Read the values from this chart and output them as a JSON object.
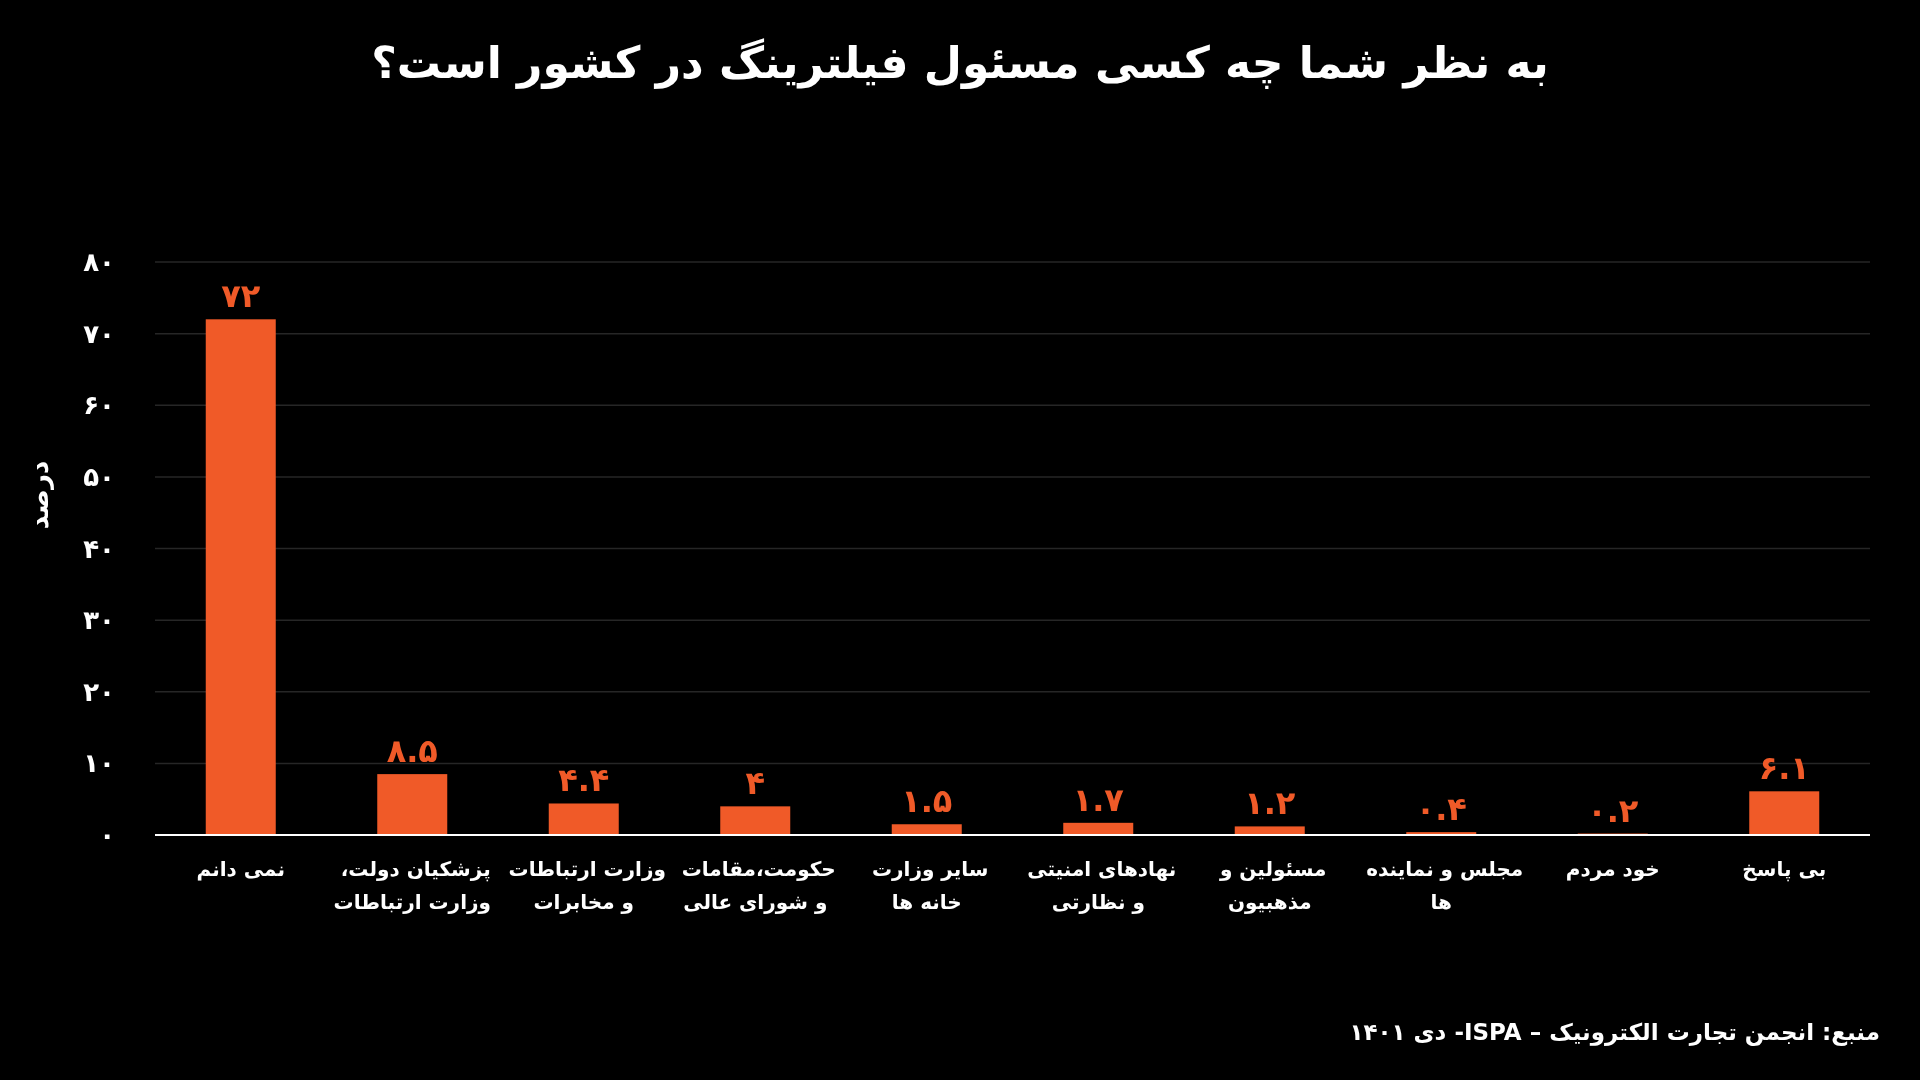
{
  "chart_data": {
    "type": "bar",
    "title": "به نظر شما چه کسی مسئول فیلترینگ در کشور است؟",
    "ylabel": "درصد",
    "categories": [
      "نمی دانم",
      "پزشکیان دولت، وزارت ارتباطات",
      "وزارت ارتباطات و مخابرات",
      "حکومت،مقامات و شورای عالی",
      "سایر وزارت خانه ها",
      "نهادهای امنیتی و نظارتی",
      "مسئولین و مذهبیون",
      "مجلس و نماینده ها",
      "خود مردم",
      "بی پاسخ"
    ],
    "values": [
      72,
      8.5,
      4.4,
      4,
      1.5,
      1.7,
      1.2,
      0.4,
      0.2,
      6.1
    ],
    "value_labels": [
      "۷۲",
      "۸.۵",
      "۴.۴",
      "۴",
      "۱.۵",
      "۱.۷",
      "۱.۲",
      "۰.۴",
      "۰.۲",
      "۶.۱"
    ],
    "color": "#f05a28",
    "ylim": [
      0,
      80
    ],
    "yticks": [
      {
        "value": 0,
        "label": "۰"
      },
      {
        "value": 10,
        "label": "۱۰"
      },
      {
        "value": 20,
        "label": "۲۰"
      },
      {
        "value": 30,
        "label": "۳۰"
      },
      {
        "value": 40,
        "label": "۴۰"
      },
      {
        "value": 50,
        "label": "۵۰"
      },
      {
        "value": 60,
        "label": "۶۰"
      },
      {
        "value": 70,
        "label": "۷۰"
      },
      {
        "value": 80,
        "label": "۸۰"
      }
    ],
    "grid": "y",
    "annotations": [
      "منبع: انجمن تجارت الکترونیک – ISPA- دی ۱۴۰۱"
    ]
  }
}
